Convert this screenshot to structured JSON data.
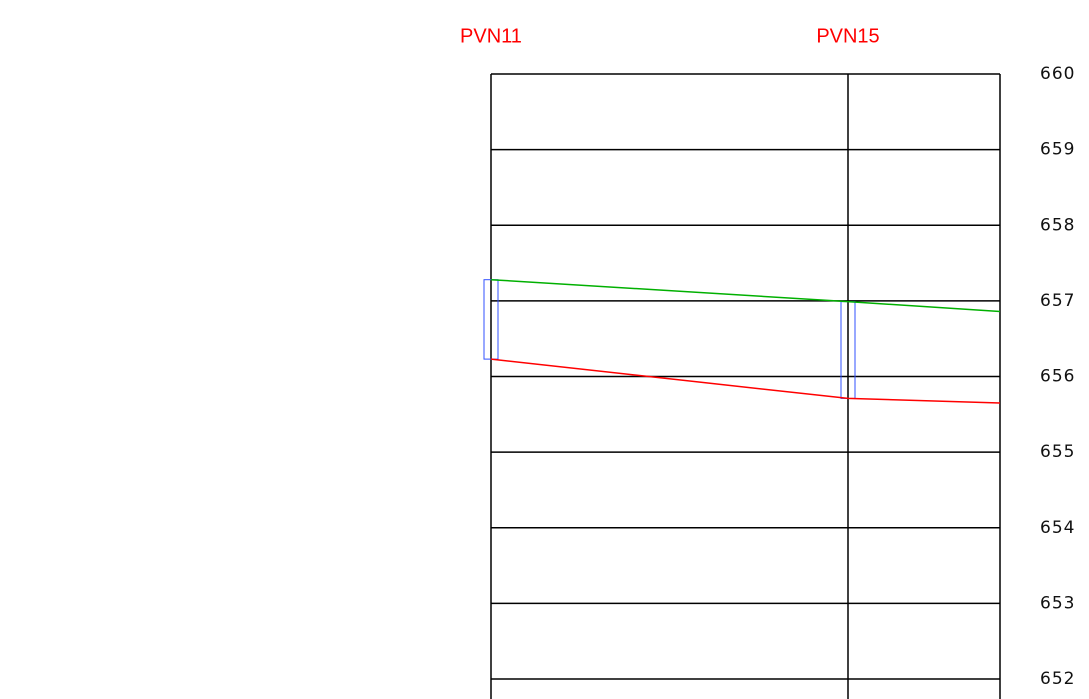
{
  "chart_data": {
    "type": "line",
    "categories": [
      "PVN11",
      "PVN15",
      null
    ],
    "series": [
      {
        "color": "#00b000",
        "values": [
          657.28,
          656.99,
          656.86
        ]
      },
      {
        "color": "#ff0000",
        "values": [
          656.23,
          655.71,
          655.65
        ]
      }
    ],
    "box_color": "#3050ff",
    "ylim": [
      652,
      660
    ],
    "yticks": [
      652,
      653,
      654,
      655,
      656,
      657,
      658,
      659,
      660
    ],
    "grid": true
  }
}
